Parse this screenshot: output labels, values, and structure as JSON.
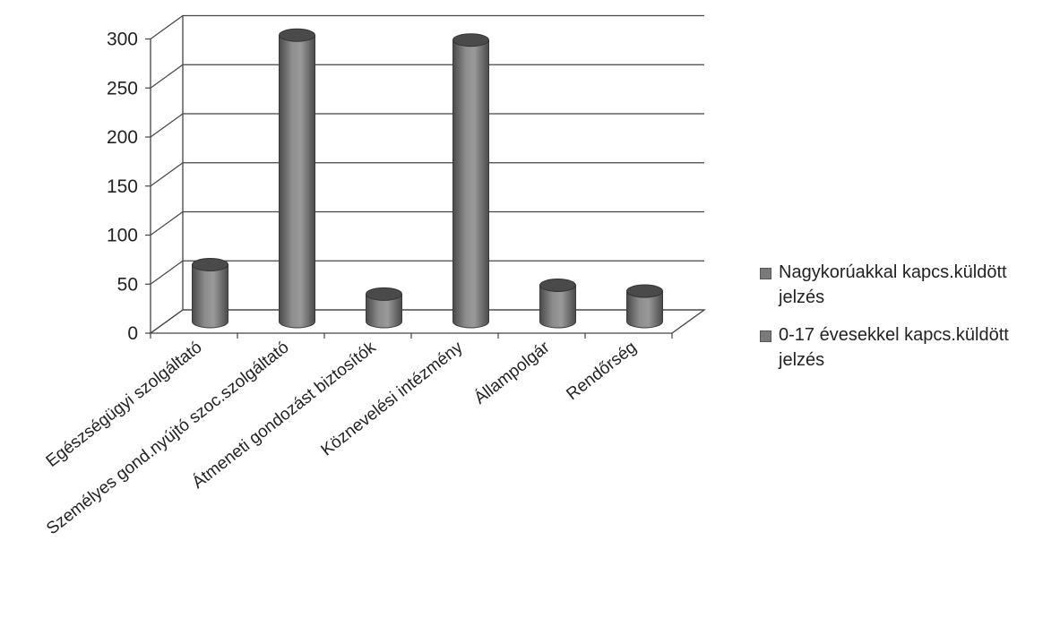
{
  "chart_data": {
    "type": "bar",
    "categories": [
      "Egészségügyi szolgáltató",
      "Személyes gond.nyújtó szoc.szolgáltató",
      "Átmeneti gondozást biztosítók",
      "Köznevelési intézmény",
      "Állampolgár",
      "Rendőrség"
    ],
    "series": [
      {
        "name": "Nagykorúakkal kapcs.küldött jelzés",
        "values": [
          0,
          0,
          0,
          0,
          0,
          0
        ]
      },
      {
        "name": "0-17 évesekkel kapcs.küldött jelzés",
        "values": [
          58,
          292,
          28,
          287,
          37,
          31
        ]
      }
    ],
    "yticks": [
      0,
      50,
      100,
      150,
      200,
      250,
      300
    ],
    "ylim": [
      0,
      300
    ],
    "title": "",
    "xlabel": "",
    "ylabel": "",
    "grid": true,
    "legend_position": "right",
    "bar_shape": "cylinder",
    "colors": {
      "bar": "#7d7d7d",
      "bar_dark": "#4a4a4a",
      "bar_light": "#a6a6a6",
      "grid": "#444444"
    }
  },
  "legend": {
    "items": [
      {
        "label": "Nagykorúakkal kapcs.küldött\njelzés"
      },
      {
        "label": "0-17 évesekkel kapcs.küldött\njelzés"
      }
    ]
  }
}
